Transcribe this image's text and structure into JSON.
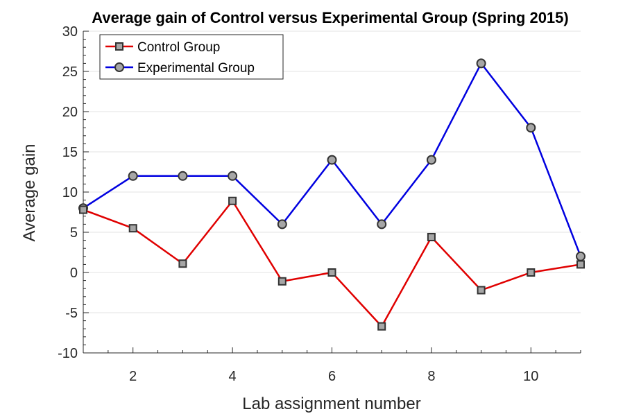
{
  "chart_data": {
    "type": "line",
    "title": "Average gain of Control versus Experimental Group (Spring 2015)",
    "xlabel": "Lab assignment number",
    "ylabel": "Average gain",
    "xlim": [
      1,
      11
    ],
    "ylim": [
      -10,
      30
    ],
    "xticks": [
      2,
      4,
      6,
      8,
      10
    ],
    "xtick_labels": [
      "2",
      "4",
      "6",
      "8",
      "10"
    ],
    "yticks": [
      -10,
      -5,
      0,
      5,
      10,
      15,
      20,
      25,
      30
    ],
    "ytick_labels": [
      "-10",
      "-5",
      "0",
      "5",
      "10",
      "15",
      "20",
      "25",
      "30"
    ],
    "grid": "horizontal",
    "legend_position": "top-left",
    "x": [
      1,
      2,
      3,
      4,
      5,
      6,
      7,
      8,
      9,
      10,
      11
    ],
    "series": [
      {
        "name": "Control Group",
        "color": "#e00000",
        "marker": "square",
        "values": [
          7.8,
          5.5,
          1.1,
          8.9,
          -1.1,
          0,
          -6.7,
          4.4,
          -2.2,
          0,
          1.0
        ]
      },
      {
        "name": "Experimental Group",
        "color": "#0000e0",
        "marker": "circle",
        "values": [
          8,
          12,
          12,
          12,
          6,
          14,
          6,
          14,
          26,
          18,
          2
        ]
      }
    ],
    "marker_fill": "#a6a6a6",
    "marker_edge": "#333333"
  }
}
